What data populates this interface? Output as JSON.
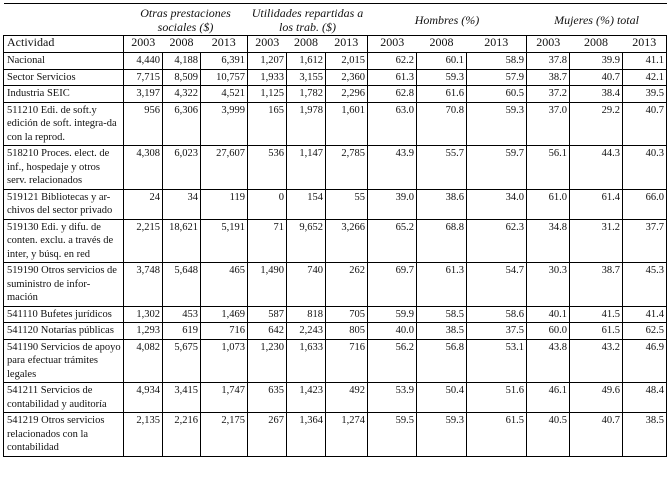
{
  "header": {
    "groups": [
      "",
      "Otras prestaciones sociales ($)",
      "Utilidades repartidas a los trab. ($)",
      "Hombres (%)",
      "Mujeres (%) total"
    ],
    "activity_label": "Actividad",
    "years": [
      "2003",
      "2008",
      "2013",
      "2003",
      "2008",
      "2013",
      "2003",
      "2008",
      "2013",
      "2003",
      "2008",
      "2013"
    ]
  },
  "rows": [
    {
      "label": "Nacional",
      "values": [
        "4,440",
        "4,188",
        "6,391",
        "1,207",
        "1,612",
        "2,015",
        "62.2",
        "60.1",
        "58.9",
        "37.8",
        "39.9",
        "41.1"
      ]
    },
    {
      "label": "Sector Servicios",
      "values": [
        "7,715",
        "8,509",
        "10,757",
        "1,933",
        "3,155",
        "2,360",
        "61.3",
        "59.3",
        "57.9",
        "38.7",
        "40.7",
        "42.1"
      ]
    },
    {
      "label": "Industria SEIC",
      "values": [
        "3,197",
        "4,322",
        "4,521",
        "1,125",
        "1,782",
        "2,296",
        "62.8",
        "61.6",
        "60.5",
        "37.2",
        "38.4",
        "39.5"
      ]
    },
    {
      "label": "511210 Edi. de soft.y edición de soft. integra-da con la reprod.",
      "values": [
        "956",
        "6,306",
        "3,999",
        "165",
        "1,978",
        "1,601",
        "63.0",
        "70.8",
        "59.3",
        "37.0",
        "29.2",
        "40.7"
      ]
    },
    {
      "label": "518210 Proces. elect. de inf., hospedaje y otros serv. relacionados",
      "values": [
        "4,308",
        "6,023",
        "27,607",
        "536",
        "1,147",
        "2,785",
        "43.9",
        "55.7",
        "59.7",
        "56.1",
        "44.3",
        "40.3"
      ]
    },
    {
      "label": "519121 Bibliotecas y ar-chivos del sector privado",
      "values": [
        "24",
        "34",
        "119",
        "0",
        "154",
        "55",
        "39.0",
        "38.6",
        "34.0",
        "61.0",
        "61.4",
        "66.0"
      ]
    },
    {
      "label": "519130 Edi. y difu. de conten. exclu. a través de inter, y búsq. en red",
      "values": [
        "2,215",
        "18,621",
        "5,191",
        "71",
        "9,652",
        "3,266",
        "65.2",
        "68.8",
        "62.3",
        "34.8",
        "31.2",
        "37.7"
      ]
    },
    {
      "label": "519190 Otros servicios de suministro de infor-mación",
      "values": [
        "3,748",
        "5,648",
        "465",
        "1,490",
        "740",
        "262",
        "69.7",
        "61.3",
        "54.7",
        "30.3",
        "38.7",
        "45.3"
      ]
    },
    {
      "label": "541110 Bufetes jurídicos",
      "values": [
        "1,302",
        "453",
        "1,469",
        "587",
        "818",
        "705",
        "59.9",
        "58.5",
        "58.6",
        "40.1",
        "41.5",
        "41.4"
      ]
    },
    {
      "label": "541120 Notarías públicas",
      "values": [
        "1,293",
        "619",
        "716",
        "642",
        "2,243",
        "805",
        "40.0",
        "38.5",
        "37.5",
        "60.0",
        "61.5",
        "62.5"
      ]
    },
    {
      "label": "541190 Servicios de apoyo para efectuar trámites legales",
      "values": [
        "4,082",
        "5,675",
        "1,073",
        "1,230",
        "1,633",
        "716",
        "56.2",
        "56.8",
        "53.1",
        "43.8",
        "43.2",
        "46.9"
      ]
    },
    {
      "label": "541211 Servicios de contabilidad y auditoría",
      "values": [
        "4,934",
        "3,415",
        "1,747",
        "635",
        "1,423",
        "492",
        "53.9",
        "50.4",
        "51.6",
        "46.1",
        "49.6",
        "48.4"
      ]
    },
    {
      "label": "541219 Otros servicios relacionados con la contabilidad",
      "values": [
        "2,135",
        "2,216",
        "2,175",
        "267",
        "1,364",
        "1,274",
        "59.5",
        "59.3",
        "61.5",
        "40.5",
        "40.7",
        "38.5"
      ]
    }
  ]
}
